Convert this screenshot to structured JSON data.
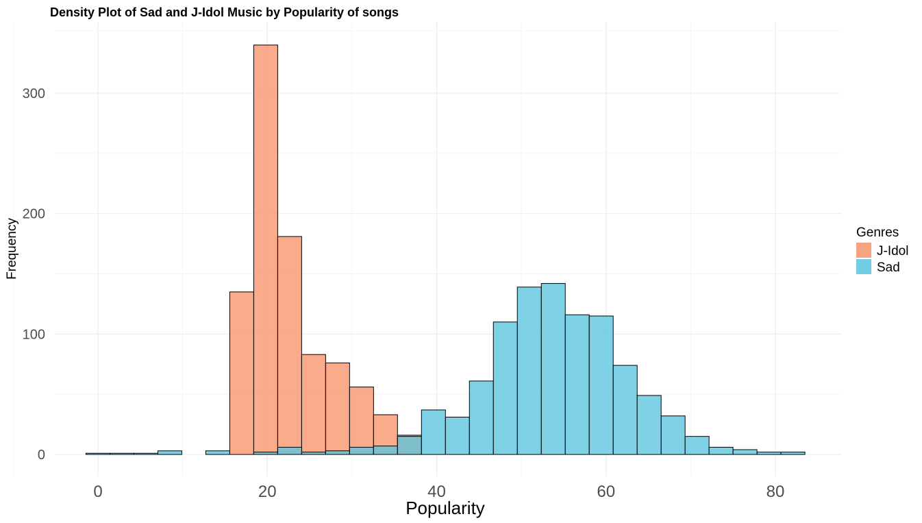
{
  "chart_data": {
    "type": "histogram",
    "title": "Density Plot of Sad and J-Idol Music by Popularity of songs",
    "xlabel": "Popularity",
    "ylabel": "Frequency",
    "xlim": [
      -3,
      88
    ],
    "ylim": [
      -5,
      355
    ],
    "x_ticks": [
      0,
      20,
      40,
      60,
      80
    ],
    "y_ticks": [
      0,
      100,
      200,
      300
    ],
    "bin_width": 2.83,
    "bin_start": -1.415,
    "grid": true,
    "legend": {
      "title": "Genres",
      "position": "right",
      "entries": [
        "J-Idol",
        "Sad"
      ]
    },
    "series": [
      {
        "name": "J-Idol",
        "color": "#f7936a",
        "values": [
          0,
          0,
          0,
          0,
          0,
          0,
          135,
          340,
          181,
          83,
          76,
          56,
          33,
          16,
          0,
          0,
          0,
          0,
          0,
          0,
          0,
          0,
          0,
          0,
          0,
          0,
          0,
          0,
          0,
          0
        ]
      },
      {
        "name": "Sad",
        "color": "#5bc4de",
        "values": [
          1,
          1,
          1,
          3,
          0,
          3,
          0,
          2,
          6,
          2,
          3,
          6,
          7,
          15,
          37,
          31,
          61,
          110,
          139,
          142,
          116,
          115,
          74,
          49,
          32,
          15,
          6,
          4,
          2,
          2
        ]
      }
    ]
  },
  "legend_title": "Genres"
}
